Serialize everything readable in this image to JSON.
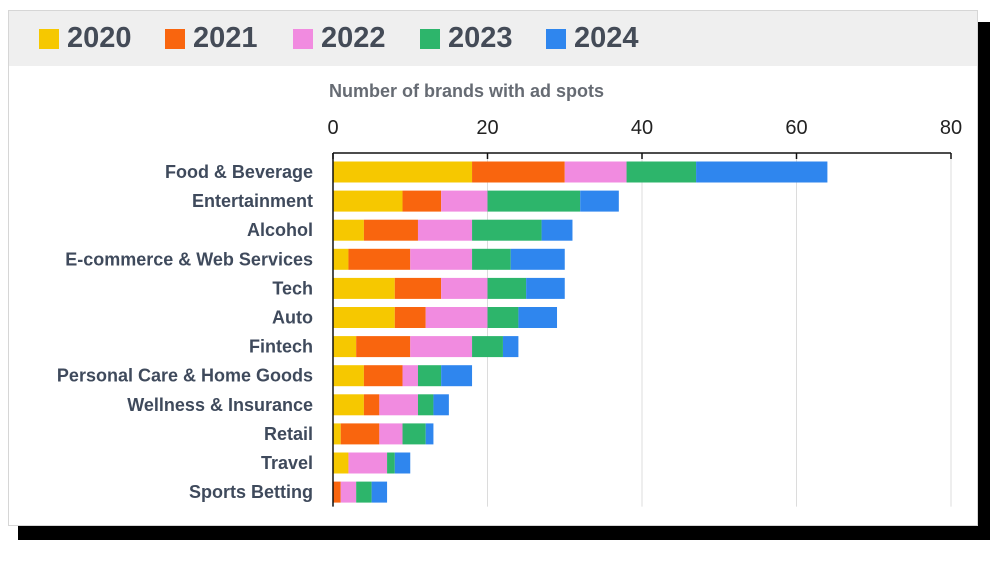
{
  "chart_data": {
    "type": "bar",
    "orientation": "horizontal",
    "stacked": true,
    "title": "Number of brands with ad spots",
    "xlim": [
      0,
      80
    ],
    "xticks": [
      0,
      20,
      40,
      60,
      80
    ],
    "grid": true,
    "legend_placement": "top",
    "categories": [
      "Food & Beverage",
      "Entertainment",
      "Alcohol",
      "E-commerce & Web Services",
      "Tech",
      "Auto",
      "Fintech",
      "Personal Care & Home Goods",
      "Wellness & Insurance",
      "Retail",
      "Travel",
      "Sports Betting"
    ],
    "series": [
      {
        "name": "2020",
        "color": "#f6c800",
        "values": [
          18,
          9,
          4,
          2,
          8,
          8,
          3,
          4,
          4,
          1,
          2,
          0
        ]
      },
      {
        "name": "2021",
        "color": "#f9650e",
        "values": [
          12,
          5,
          7,
          8,
          6,
          4,
          7,
          5,
          2,
          5,
          0,
          1
        ]
      },
      {
        "name": "2022",
        "color": "#f18be0",
        "values": [
          8,
          6,
          7,
          8,
          6,
          8,
          8,
          2,
          5,
          3,
          5,
          2
        ]
      },
      {
        "name": "2023",
        "color": "#2db56b",
        "values": [
          9,
          12,
          9,
          5,
          5,
          4,
          4,
          3,
          2,
          3,
          1,
          2
        ]
      },
      {
        "name": "2024",
        "color": "#2f86ee",
        "values": [
          17,
          5,
          4,
          7,
          5,
          5,
          2,
          4,
          2,
          1,
          2,
          2
        ]
      }
    ]
  }
}
